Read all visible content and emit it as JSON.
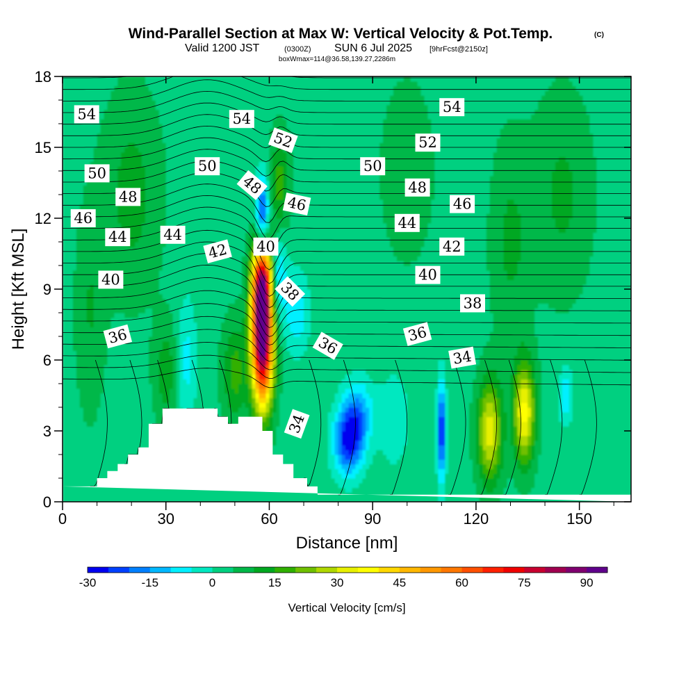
{
  "chart_data": {
    "type": "heatmap",
    "title": {
      "main": "Wind-Parallel Section at Max W: Vertical Velocity & Pot.Temp.",
      "copyright": "(C)",
      "valid_prefix": "Valid 1200 JST",
      "valid_utc": "(0300Z)",
      "valid_date": "SUN 6 Jul 2025",
      "forecast": "[9hrFcst@2150z]",
      "box": "boxWmax=114@36.58,139.27,2286m"
    },
    "xlabel": "Distance [nm]",
    "ylabel": "Height [Kft MSL]",
    "xlim": [
      0,
      165
    ],
    "ylim": [
      0,
      18
    ],
    "x_ticks": [
      "0",
      "30",
      "60",
      "90",
      "120",
      "150"
    ],
    "x_tick_values": [
      0,
      30,
      60,
      90,
      120,
      150
    ],
    "y_ticks": [
      "0",
      "3",
      "6",
      "9",
      "12",
      "15",
      "18"
    ],
    "y_tick_values": [
      0,
      3,
      6,
      9,
      12,
      15,
      18
    ],
    "colorbar": {
      "title": "Vertical Velocity [cm/s]",
      "labels": [
        "-30",
        "-15",
        "0",
        "15",
        "30",
        "45",
        "60",
        "75",
        "90"
      ],
      "label_values": [
        -30,
        -15,
        0,
        15,
        30,
        45,
        60,
        75,
        90
      ],
      "min": -30,
      "max": 95,
      "step": 5,
      "colors": [
        "#0000f0",
        "#0040ff",
        "#0080ff",
        "#00b8ff",
        "#00f0ff",
        "#00e8c0",
        "#00d080",
        "#00b848",
        "#00a820",
        "#30b000",
        "#70c000",
        "#b0d800",
        "#e8f000",
        "#ffff00",
        "#ffd800",
        "#ffb800",
        "#ff9800",
        "#ff7800",
        "#ff5000",
        "#ff2000",
        "#f00000",
        "#c80030",
        "#a00050",
        "#800070",
        "#60008c"
      ]
    },
    "terrain": [
      [
        0,
        0.65
      ],
      [
        10,
        0.65
      ],
      [
        10,
        1.0
      ],
      [
        13,
        1.0
      ],
      [
        13,
        1.3
      ],
      [
        16,
        1.3
      ],
      [
        16,
        1.6
      ],
      [
        19,
        1.6
      ],
      [
        19,
        2.0
      ],
      [
        22,
        2.0
      ],
      [
        22,
        2.3
      ],
      [
        25,
        2.3
      ],
      [
        25,
        3.3
      ],
      [
        29,
        3.3
      ],
      [
        29,
        3.95
      ],
      [
        45,
        3.95
      ],
      [
        45,
        3.6
      ],
      [
        48,
        3.6
      ],
      [
        48,
        3.3
      ],
      [
        51,
        3.3
      ],
      [
        51,
        3.6
      ],
      [
        58,
        3.6
      ],
      [
        58,
        3.0
      ],
      [
        61,
        3.0
      ],
      [
        61,
        2.0
      ],
      [
        64,
        2.0
      ],
      [
        64,
        1.6
      ],
      [
        67,
        1.6
      ],
      [
        67,
        1.0
      ],
      [
        71,
        1.0
      ],
      [
        71,
        0.65
      ],
      [
        74,
        0.65
      ],
      [
        74,
        0.3
      ],
      [
        165,
        0.3
      ],
      [
        165,
        0
      ]
    ],
    "w_features": [
      {
        "x": 58,
        "z": 7.0,
        "sx": 2.2,
        "sz": 2.0,
        "w": 95
      },
      {
        "x": 58,
        "z": 9.5,
        "sx": 2.0,
        "sz": 1.2,
        "w": 50
      },
      {
        "x": 50,
        "z": 5.5,
        "sx": 2.5,
        "sz": 1.5,
        "w": 14
      },
      {
        "x": 63,
        "z": 13.5,
        "sx": 2.0,
        "sz": 1.5,
        "w": 14
      },
      {
        "x": 58,
        "z": 12.0,
        "sx": 1.3,
        "sz": 1.2,
        "w": -30
      },
      {
        "x": 62,
        "z": 9.5,
        "sx": 2.0,
        "sz": 1.3,
        "w": -18
      },
      {
        "x": 68,
        "z": 8.0,
        "sx": 2.5,
        "sz": 1.2,
        "w": -12
      },
      {
        "x": 83,
        "z": 2.6,
        "sx": 3.0,
        "sz": 1.0,
        "w": -30
      },
      {
        "x": 86,
        "z": 3.8,
        "sx": 3.0,
        "sz": 1.0,
        "w": -15
      },
      {
        "x": 110,
        "z": 3.0,
        "sx": 0.9,
        "sz": 1.4,
        "w": -30
      },
      {
        "x": 96,
        "z": 3.5,
        "sx": 3.0,
        "sz": 1.3,
        "w": -8
      },
      {
        "x": 124,
        "z": 3.0,
        "sx": 2.5,
        "sz": 1.5,
        "w": 30
      },
      {
        "x": 134,
        "z": 3.8,
        "sx": 2.2,
        "sz": 1.5,
        "w": 34
      },
      {
        "x": 146,
        "z": 4.5,
        "sx": 1.5,
        "sz": 0.8,
        "w": -12
      },
      {
        "x": 36,
        "z": 6.0,
        "sx": 2.0,
        "sz": 1.8,
        "w": -10
      },
      {
        "x": 30,
        "z": 5.5,
        "sx": 2.5,
        "sz": 1.5,
        "w": 10
      },
      {
        "x": 20,
        "z": 13.0,
        "sx": 6.0,
        "sz": 3.0,
        "w": 9
      },
      {
        "x": 145,
        "z": 13.0,
        "sx": 6.0,
        "sz": 3.0,
        "w": 8
      },
      {
        "x": 130,
        "z": 11.0,
        "sx": 4.0,
        "sz": 3.0,
        "w": 8
      },
      {
        "x": 100,
        "z": 14.0,
        "sx": 5.0,
        "sz": 2.5,
        "w": 7
      },
      {
        "x": 8,
        "z": 8.0,
        "sx": 3.0,
        "sz": 3.0,
        "w": 7
      }
    ],
    "theta_contour_labels": [
      {
        "value": "54",
        "x": 7,
        "z": 16.4,
        "rot": 0
      },
      {
        "value": "54",
        "x": 52,
        "z": 16.2,
        "rot": 0
      },
      {
        "value": "54",
        "x": 113,
        "z": 16.7,
        "rot": 0
      },
      {
        "value": "52",
        "x": 64,
        "z": 15.3,
        "rot": 20
      },
      {
        "value": "52",
        "x": 106,
        "z": 15.2,
        "rot": 0
      },
      {
        "value": "50",
        "x": 10,
        "z": 13.9,
        "rot": 0
      },
      {
        "value": "50",
        "x": 42,
        "z": 14.2,
        "rot": 0
      },
      {
        "value": "50",
        "x": 90,
        "z": 14.2,
        "rot": 0
      },
      {
        "value": "48",
        "x": 19,
        "z": 12.9,
        "rot": 0
      },
      {
        "value": "48",
        "x": 55,
        "z": 13.4,
        "rot": 40
      },
      {
        "value": "48",
        "x": 103,
        "z": 13.3,
        "rot": 0
      },
      {
        "value": "46",
        "x": 6,
        "z": 12.0,
        "rot": 0
      },
      {
        "value": "46",
        "x": 68,
        "z": 12.6,
        "rot": 12
      },
      {
        "value": "46",
        "x": 116,
        "z": 12.6,
        "rot": 0
      },
      {
        "value": "44",
        "x": 16,
        "z": 11.2,
        "rot": 0
      },
      {
        "value": "44",
        "x": 32,
        "z": 11.3,
        "rot": 0
      },
      {
        "value": "44",
        "x": 100,
        "z": 11.8,
        "rot": 0
      },
      {
        "value": "42",
        "x": 45,
        "z": 10.6,
        "rot": -15
      },
      {
        "value": "42",
        "x": 113,
        "z": 10.8,
        "rot": 0
      },
      {
        "value": "40",
        "x": 59,
        "z": 10.8,
        "rot": 0
      },
      {
        "value": "40",
        "x": 14,
        "z": 9.4,
        "rot": 0
      },
      {
        "value": "40",
        "x": 106,
        "z": 9.6,
        "rot": 0
      },
      {
        "value": "38",
        "x": 66,
        "z": 8.9,
        "rot": 45
      },
      {
        "value": "38",
        "x": 119,
        "z": 8.4,
        "rot": 0
      },
      {
        "value": "36",
        "x": 16,
        "z": 7.0,
        "rot": -15
      },
      {
        "value": "36",
        "x": 77,
        "z": 6.6,
        "rot": 30
      },
      {
        "value": "36",
        "x": 103,
        "z": 7.1,
        "rot": -15
      },
      {
        "value": "34",
        "x": 116,
        "z": 6.1,
        "rot": -10
      },
      {
        "value": "34",
        "x": 68,
        "z": 3.3,
        "rot": -70
      }
    ]
  }
}
